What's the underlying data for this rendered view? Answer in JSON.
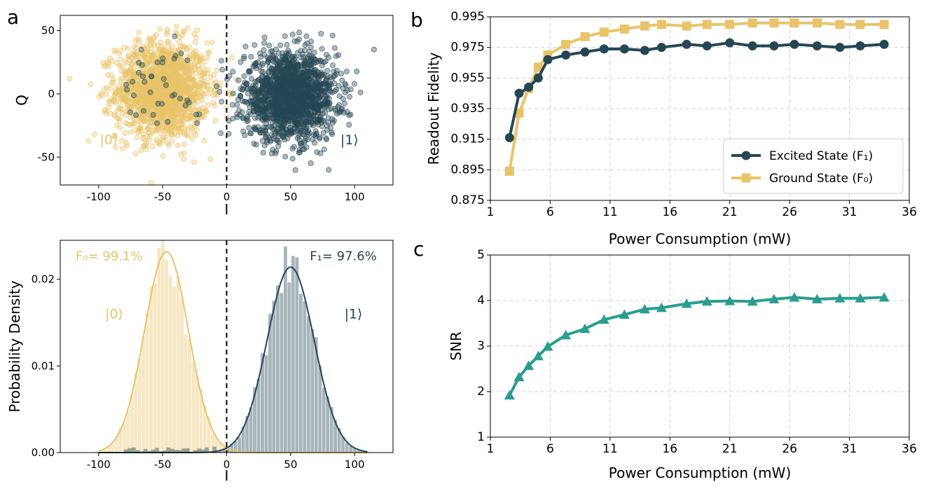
{
  "colors": {
    "ground": "#E9C46A",
    "excited": "#264653",
    "snr": "#2A9D8F",
    "grid": "#d0d0d0",
    "axis": "#000000"
  },
  "panel_labels": {
    "a": "a",
    "b": "b",
    "c": "c"
  },
  "chart_data": [
    {
      "id": "scatter",
      "type": "scatter",
      "xlabel": "I",
      "ylabel": "Q",
      "xlim": [
        -130,
        130
      ],
      "ylim": [
        -72,
        62
      ],
      "xticks": [
        -100,
        -50,
        0,
        50,
        100
      ],
      "yticks": [
        -50,
        0,
        50
      ],
      "threshold_x": 0,
      "series": [
        {
          "key": "ground",
          "state_label": "|0⟩",
          "center": [
            -50,
            3
          ],
          "std": [
            18,
            19
          ],
          "count": 1600
        },
        {
          "key": "excited",
          "state_label": "|1⟩",
          "center": [
            50,
            -2
          ],
          "std": [
            18,
            17
          ],
          "count": 1600
        }
      ],
      "annotations": [
        {
          "text": "|0⟩",
          "x": -92,
          "y": -40,
          "key": "ground"
        },
        {
          "text": "|1⟩",
          "x": 96,
          "y": -40,
          "key": "excited"
        }
      ]
    },
    {
      "id": "histogram",
      "type": "histogram",
      "xlabel": "I",
      "ylabel": "Probability Density",
      "xlim": [
        -130,
        130
      ],
      "ylim": [
        0,
        0.0245
      ],
      "xticks": [
        -100,
        -50,
        0,
        50,
        100
      ],
      "yticks": [
        0.0,
        0.01,
        0.02
      ],
      "ytick_labels": [
        "0.00",
        "0.01",
        "0.02"
      ],
      "threshold_x": 0,
      "series": [
        {
          "key": "ground",
          "mean": -47,
          "std": 17.2,
          "peak": 0.0232
        },
        {
          "key": "excited",
          "mean": 50,
          "std": 18.4,
          "peak": 0.0214
        }
      ],
      "annotations": [
        {
          "text": "F₀= 99.1%",
          "x": -118,
          "y": 0.0222,
          "key": "ground"
        },
        {
          "text": "F₁= 97.6%",
          "x": 65,
          "y": 0.0222,
          "key": "excited"
        },
        {
          "text": "|0⟩",
          "x": -95,
          "y": 0.0155,
          "key": "ground"
        },
        {
          "text": "|1⟩",
          "x": 92,
          "y": 0.0155,
          "key": "excited"
        }
      ]
    },
    {
      "id": "fidelity",
      "type": "line",
      "xlabel": "Power Consumption (mW)",
      "ylabel": "Readout Fidelity",
      "xlim": [
        1,
        36
      ],
      "ylim": [
        0.875,
        0.995
      ],
      "xticks": [
        1,
        6,
        11,
        16,
        21,
        26,
        31,
        36
      ],
      "yticks": [
        0.875,
        0.895,
        0.915,
        0.935,
        0.955,
        0.975,
        0.995
      ],
      "legend_position": "lower-right",
      "x": [
        2.6,
        3.4,
        4.2,
        5.0,
        5.8,
        7.3,
        8.9,
        10.5,
        12.2,
        13.9,
        15.3,
        17.4,
        19.1,
        21.0,
        22.9,
        24.7,
        26.4,
        28.3,
        30.2,
        31.9,
        33.9
      ],
      "series": [
        {
          "key": "excited",
          "name": "Excited State (F₁)",
          "marker": "circle",
          "values": [
            0.916,
            0.945,
            0.949,
            0.955,
            0.967,
            0.97,
            0.972,
            0.974,
            0.974,
            0.973,
            0.975,
            0.977,
            0.976,
            0.978,
            0.976,
            0.976,
            0.977,
            0.976,
            0.975,
            0.976,
            0.977
          ]
        },
        {
          "key": "ground",
          "name": "Ground State (F₀)",
          "marker": "square",
          "values": [
            0.894,
            0.932,
            0.948,
            0.962,
            0.97,
            0.977,
            0.982,
            0.985,
            0.987,
            0.989,
            0.99,
            0.989,
            0.99,
            0.99,
            0.991,
            0.991,
            0.991,
            0.991,
            0.99,
            0.99,
            0.99
          ]
        }
      ]
    },
    {
      "id": "snr",
      "type": "line",
      "xlabel": "Power Consumption (mW)",
      "ylabel": "SNR",
      "xlim": [
        1,
        36
      ],
      "ylim": [
        1,
        5
      ],
      "xticks": [
        1,
        6,
        11,
        16,
        21,
        26,
        31,
        36
      ],
      "yticks": [
        1,
        2,
        3,
        4,
        5
      ],
      "x": [
        2.6,
        3.4,
        4.2,
        5.0,
        5.8,
        7.3,
        8.9,
        10.5,
        12.2,
        13.9,
        15.3,
        17.4,
        19.1,
        21.0,
        22.9,
        24.7,
        26.4,
        28.3,
        30.2,
        31.9,
        33.9
      ],
      "series": [
        {
          "key": "snr",
          "marker": "triangle",
          "values": [
            1.92,
            2.32,
            2.57,
            2.78,
            2.99,
            3.24,
            3.38,
            3.58,
            3.69,
            3.81,
            3.84,
            3.93,
            3.98,
            3.99,
            3.98,
            4.03,
            4.07,
            4.03,
            4.05,
            4.05,
            4.07
          ]
        }
      ]
    }
  ]
}
